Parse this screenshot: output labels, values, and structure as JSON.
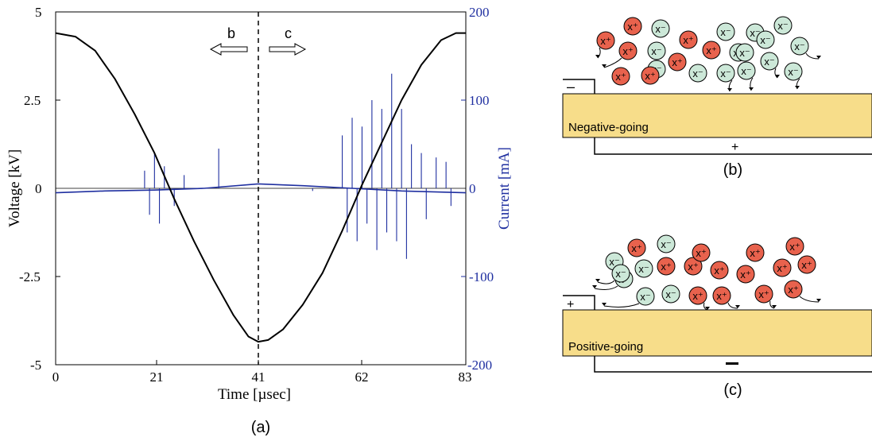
{
  "chart_data": {
    "type": "line",
    "xlabel": "Time [µsec]",
    "ylabel_left": "Voltage [kV]",
    "ylabel_right": "Current [mA]",
    "xlim": [
      0,
      83
    ],
    "ylim_left": [
      -5,
      5
    ],
    "ylim_right": [
      -200,
      200
    ],
    "x_ticks": [
      "0",
      "21",
      "41",
      "62",
      "83"
    ],
    "y_left_ticks": [
      "5",
      "2.5",
      "0",
      "-2.5",
      "-5"
    ],
    "y_right_ticks": [
      "200",
      "100",
      "0",
      "-100",
      "-200"
    ],
    "voltage_series": {
      "axis": "left",
      "color": "#000000",
      "points": [
        [
          0,
          4.4
        ],
        [
          4,
          4.3
        ],
        [
          8,
          3.9
        ],
        [
          12,
          3.1
        ],
        [
          16,
          2.1
        ],
        [
          20,
          1.0
        ],
        [
          24,
          -0.3
        ],
        [
          28,
          -1.5
        ],
        [
          32,
          -2.6
        ],
        [
          36,
          -3.6
        ],
        [
          39,
          -4.2
        ],
        [
          41,
          -4.35
        ],
        [
          43,
          -4.3
        ],
        [
          46,
          -4.0
        ],
        [
          50,
          -3.3
        ],
        [
          54,
          -2.4
        ],
        [
          58,
          -1.2
        ],
        [
          62,
          0.1
        ],
        [
          66,
          1.3
        ],
        [
          70,
          2.5
        ],
        [
          74,
          3.5
        ],
        [
          78,
          4.2
        ],
        [
          81,
          4.4
        ],
        [
          83,
          4.4
        ]
      ]
    },
    "current_series": {
      "axis": "right",
      "color": "#1f2fa0",
      "baseline": [
        [
          0,
          -5
        ],
        [
          10,
          -3
        ],
        [
          20,
          -2
        ],
        [
          30,
          0
        ],
        [
          41,
          5
        ],
        [
          50,
          3
        ],
        [
          60,
          0
        ],
        [
          70,
          -3
        ],
        [
          83,
          -5
        ]
      ],
      "spikes": [
        [
          18,
          20
        ],
        [
          19,
          -30
        ],
        [
          20,
          40
        ],
        [
          21,
          -40
        ],
        [
          22,
          25
        ],
        [
          24,
          -20
        ],
        [
          26,
          15
        ],
        [
          33,
          45
        ],
        [
          52,
          -3
        ],
        [
          58,
          60
        ],
        [
          59,
          -50
        ],
        [
          60,
          80
        ],
        [
          61,
          -60
        ],
        [
          62,
          70
        ],
        [
          63,
          -40
        ],
        [
          64,
          100
        ],
        [
          65,
          -70
        ],
        [
          66,
          90
        ],
        [
          67,
          -50
        ],
        [
          68,
          130
        ],
        [
          69,
          -60
        ],
        [
          70,
          90
        ],
        [
          71,
          -80
        ],
        [
          72,
          50
        ],
        [
          74,
          40
        ],
        [
          75,
          -35
        ],
        [
          77,
          35
        ],
        [
          79,
          30
        ],
        [
          80,
          -20
        ]
      ]
    },
    "marker": {
      "x": 41,
      "label_left": "b",
      "label_right": "c"
    },
    "caption": "(a)"
  },
  "diagram_b": {
    "cathode_sign": "–",
    "anode_sign": "+",
    "region_label": "Negative-going",
    "caption": "(b)",
    "pos_ion": "x⁺",
    "neg_ion": "x⁻"
  },
  "diagram_c": {
    "cathode_sign": "+",
    "anode_sign": "–",
    "region_label": "Positive-going",
    "caption": "(c)",
    "pos_ion": "x⁺",
    "neg_ion": "x⁻"
  },
  "colors": {
    "voltage": "#000000",
    "current": "#1f2fa0",
    "dielectric": "#f7dd8a",
    "pos_ion": "#e8624d",
    "neg_ion": "#cce8d8"
  }
}
